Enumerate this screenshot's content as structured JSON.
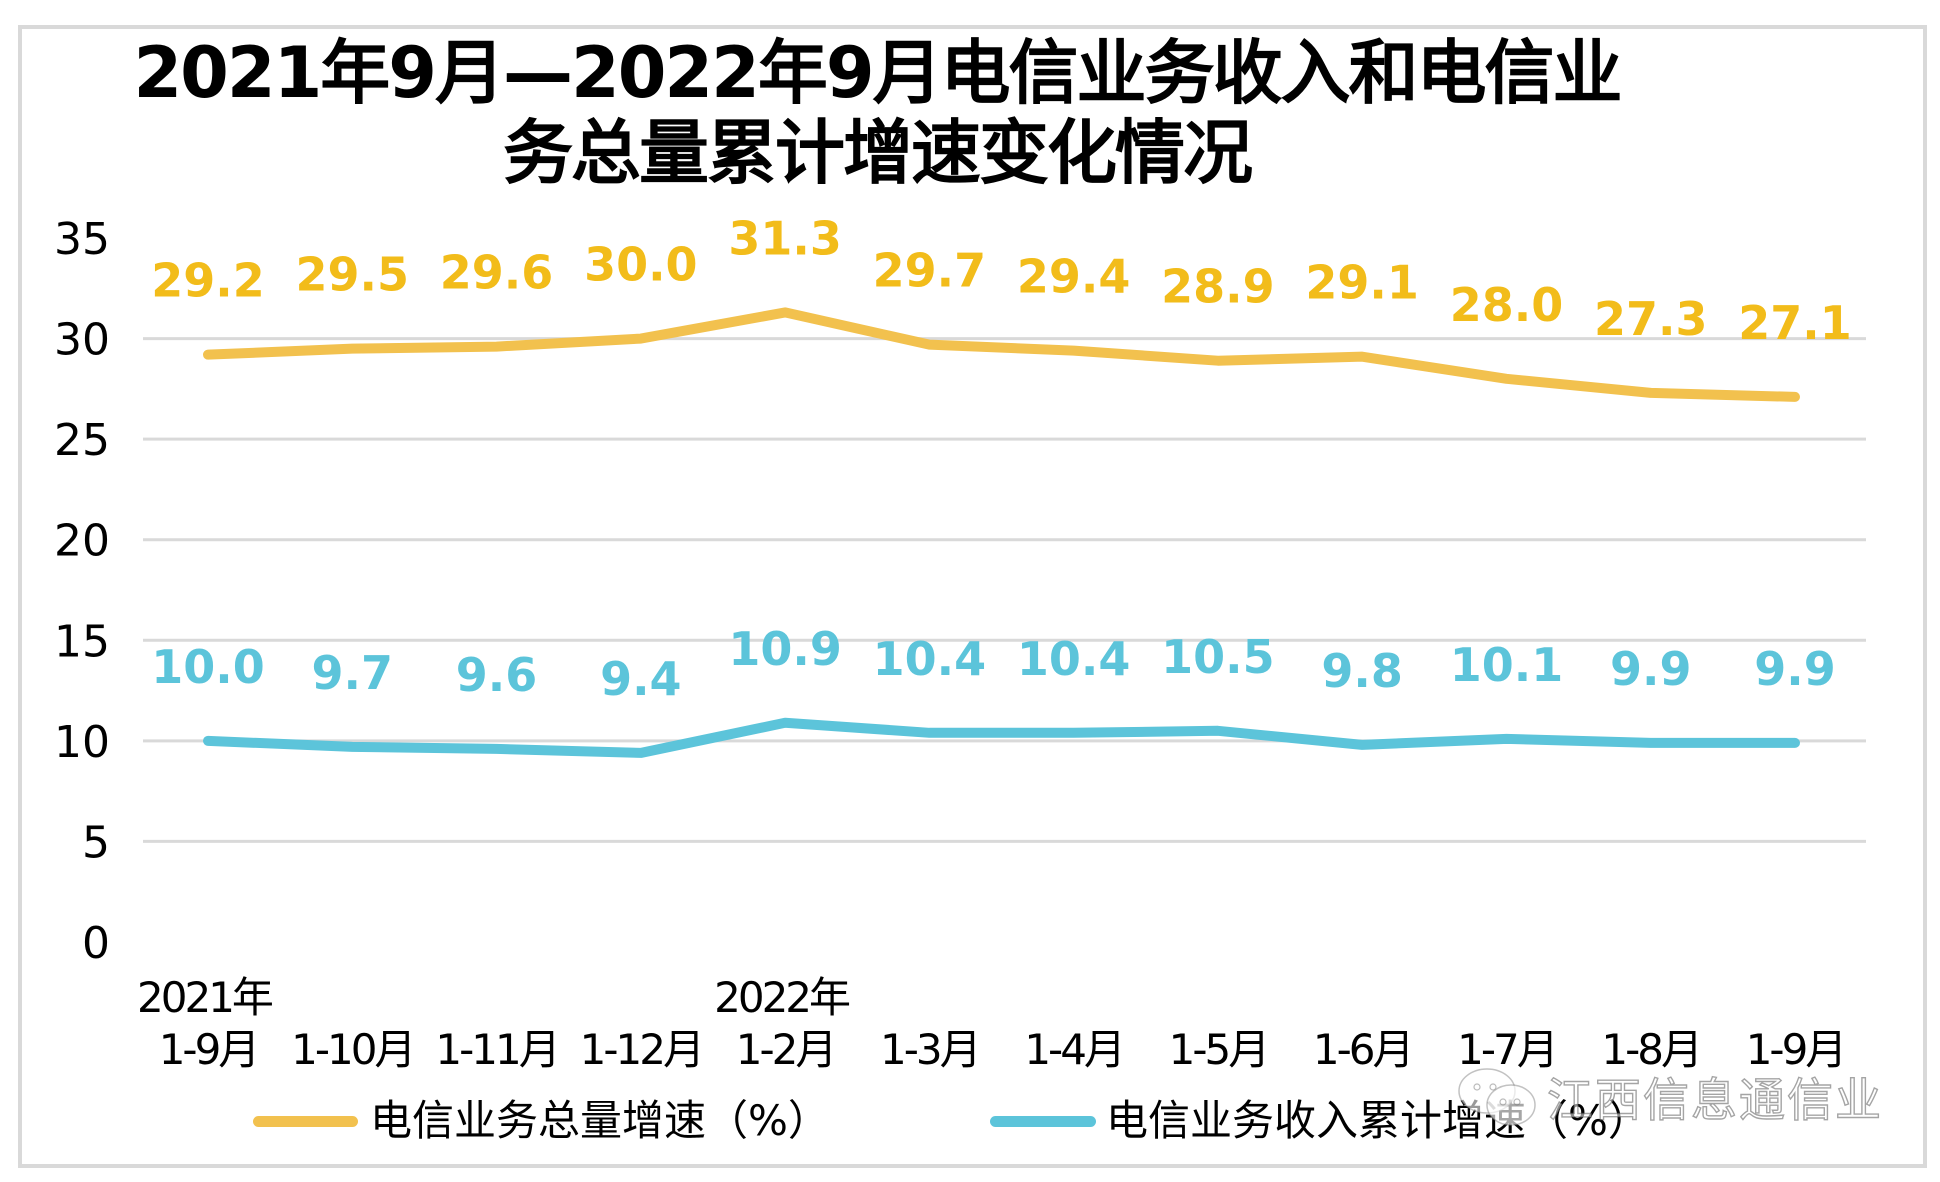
{
  "chart_data": {
    "type": "line",
    "title_lines": [
      "2021年9月—2022年9月电信业务收入和电信业",
      "务总量累计增速变化情况"
    ],
    "xlabel": "",
    "ylabel": "",
    "ylim": [
      0,
      35
    ],
    "yticks": [
      "0",
      "5",
      "10",
      "15",
      "20",
      "25",
      "30",
      "35"
    ],
    "gridlines": [
      5,
      10,
      15,
      20,
      25,
      30
    ],
    "grid": true,
    "categories": [
      {
        "year": "2021年",
        "month": "1-9月"
      },
      {
        "year": "",
        "month": "1-10月"
      },
      {
        "year": "",
        "month": "1-11月"
      },
      {
        "year": "",
        "month": "1-12月"
      },
      {
        "year": "2022年",
        "month": "1-2月"
      },
      {
        "year": "",
        "month": "1-3月"
      },
      {
        "year": "",
        "month": "1-4月"
      },
      {
        "year": "",
        "month": "1-5月"
      },
      {
        "year": "",
        "month": "1-6月"
      },
      {
        "year": "",
        "month": "1-7月"
      },
      {
        "year": "",
        "month": "1-8月"
      },
      {
        "year": "",
        "month": "1-9月"
      }
    ],
    "series": [
      {
        "name": "电信业务总量增速（%）",
        "color": "#F2C14E",
        "label_color": "#F2BC1A",
        "values": [
          29.2,
          29.5,
          29.6,
          30.0,
          31.3,
          29.7,
          29.4,
          28.9,
          29.1,
          28.0,
          27.3,
          27.1
        ],
        "labels": [
          "29.2",
          "29.5",
          "29.6",
          "30.0",
          "31.3",
          "29.7",
          "29.4",
          "28.9",
          "29.1",
          "28.0",
          "27.3",
          "27.1"
        ]
      },
      {
        "name": "电信业务收入累计增速（%）",
        "color": "#5CC4DA",
        "label_color": "#5CC4DA",
        "values": [
          10.0,
          9.7,
          9.6,
          9.4,
          10.9,
          10.4,
          10.4,
          10.5,
          9.8,
          10.1,
          9.9,
          9.9
        ],
        "labels": [
          "10.0",
          "9.7",
          "9.6",
          "9.4",
          "10.9",
          "10.4",
          "10.4",
          "10.5",
          "9.8",
          "10.1",
          "9.9",
          "9.9"
        ]
      }
    ],
    "legend_position": "bottom"
  },
  "watermark": {
    "icon": "wechat-icon",
    "text": "江西信息通信业"
  }
}
